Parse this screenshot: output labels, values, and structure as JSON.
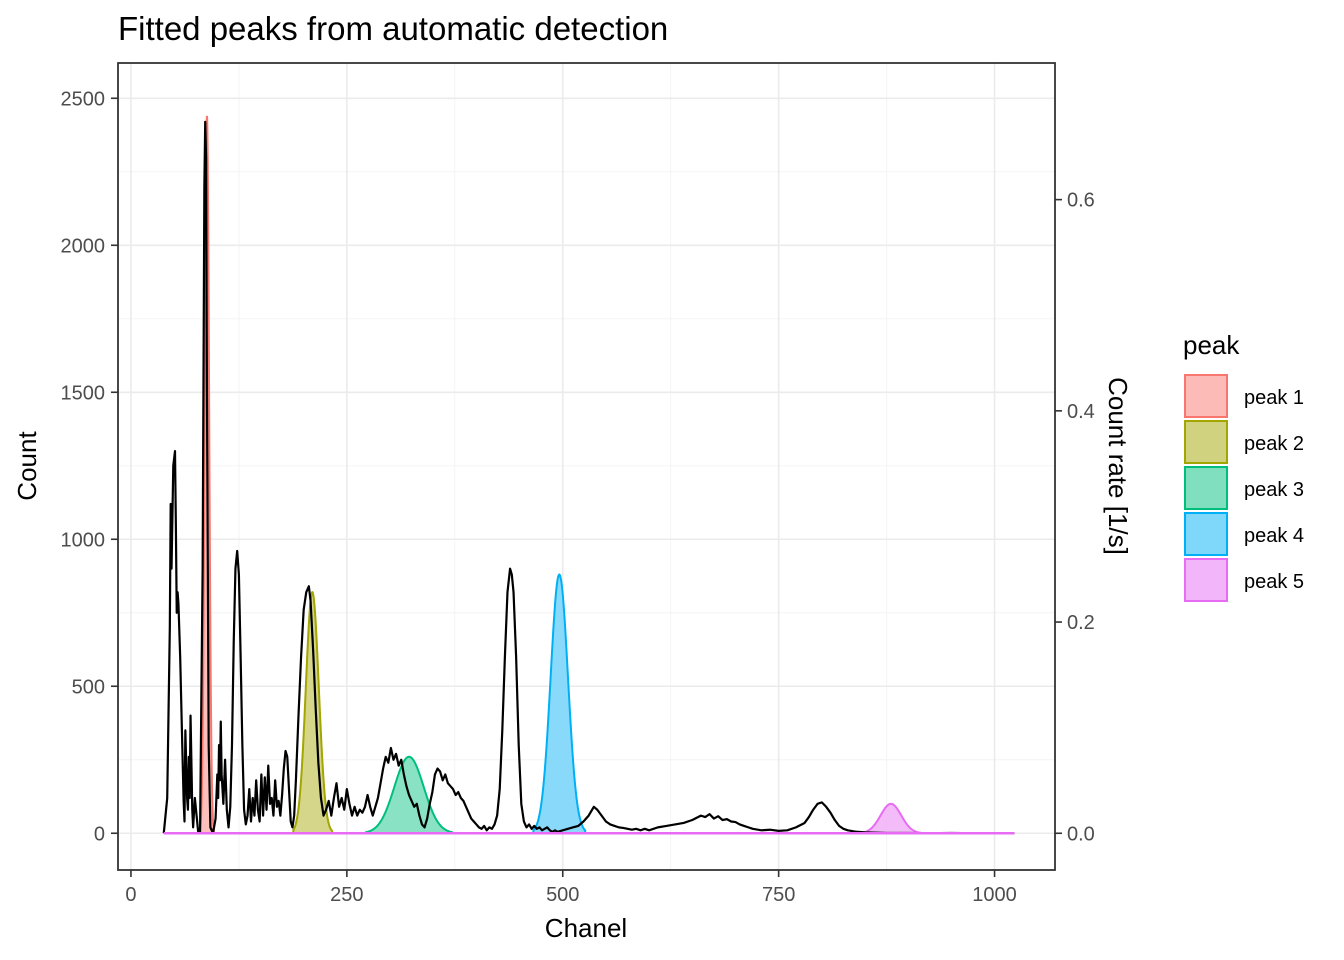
{
  "chart_data": {
    "type": "area",
    "title": "Fitted peaks from automatic detection",
    "xlabel": "Chanel",
    "ylabel": "Count",
    "y2label": "Count rate [1/s]",
    "xlim": [
      -15,
      1070
    ],
    "ylim": [
      -125,
      2620
    ],
    "y2lim": [
      -0.03478,
      0.72937
    ],
    "x_ticks": [
      0,
      250,
      500,
      750,
      1000
    ],
    "x_tick_labels": [
      "0",
      "250",
      "500",
      "750",
      "1000"
    ],
    "y_ticks": [
      0,
      500,
      1000,
      1500,
      2000,
      2500
    ],
    "y_tick_labels": [
      "0",
      "500",
      "1000",
      "1500",
      "2000",
      "2500"
    ],
    "y2_ticks": [
      0.0,
      0.2,
      0.4,
      0.6
    ],
    "y2_tick_labels": [
      "0.0",
      "0.2",
      "0.4",
      "0.6"
    ],
    "grid": true,
    "legend": {
      "title": "peak",
      "position": "right"
    },
    "spectrum": {
      "color": "#000000",
      "points": [
        [
          38,
          0
        ],
        [
          42,
          120
        ],
        [
          45,
          700
        ],
        [
          46,
          1120
        ],
        [
          47,
          900
        ],
        [
          49,
          1250
        ],
        [
          51,
          1300
        ],
        [
          52,
          1050
        ],
        [
          53,
          750
        ],
        [
          54,
          820
        ],
        [
          55,
          780
        ],
        [
          57,
          600
        ],
        [
          59,
          350
        ],
        [
          61,
          110
        ],
        [
          62,
          40
        ],
        [
          63,
          350
        ],
        [
          65,
          120
        ],
        [
          66,
          80
        ],
        [
          67,
          260
        ],
        [
          68,
          120
        ],
        [
          69,
          400
        ],
        [
          70,
          240
        ],
        [
          71,
          80
        ],
        [
          72,
          20
        ],
        [
          74,
          120
        ],
        [
          76,
          60
        ],
        [
          78,
          0
        ],
        [
          80,
          0
        ],
        [
          83,
          900
        ],
        [
          85,
          2200
        ],
        [
          86,
          2420
        ],
        [
          87,
          2300
        ],
        [
          88,
          1500
        ],
        [
          90,
          300
        ],
        [
          92,
          20
        ],
        [
          95,
          0
        ],
        [
          98,
          50
        ],
        [
          100,
          200
        ],
        [
          101,
          120
        ],
        [
          102,
          300
        ],
        [
          103,
          180
        ],
        [
          104,
          380
        ],
        [
          105,
          200
        ],
        [
          107,
          100
        ],
        [
          109,
          250
        ],
        [
          111,
          80
        ],
        [
          113,
          20
        ],
        [
          115,
          90
        ],
        [
          117,
          300
        ],
        [
          119,
          650
        ],
        [
          121,
          900
        ],
        [
          123,
          960
        ],
        [
          125,
          880
        ],
        [
          127,
          600
        ],
        [
          129,
          300
        ],
        [
          131,
          80
        ],
        [
          133,
          30
        ],
        [
          135,
          60
        ],
        [
          137,
          150
        ],
        [
          139,
          40
        ],
        [
          141,
          120
        ],
        [
          143,
          60
        ],
        [
          145,
          180
        ],
        [
          147,
          80
        ],
        [
          149,
          40
        ],
        [
          151,
          200
        ],
        [
          153,
          60
        ],
        [
          155,
          190
        ],
        [
          157,
          80
        ],
        [
          159,
          230
        ],
        [
          161,
          100
        ],
        [
          163,
          120
        ],
        [
          165,
          60
        ],
        [
          167,
          180
        ],
        [
          169,
          90
        ],
        [
          171,
          110
        ],
        [
          173,
          60
        ],
        [
          175,
          130
        ],
        [
          177,
          220
        ],
        [
          179,
          280
        ],
        [
          181,
          260
        ],
        [
          183,
          150
        ],
        [
          185,
          40
        ],
        [
          187,
          20
        ],
        [
          189,
          60
        ],
        [
          191,
          180
        ],
        [
          194,
          400
        ],
        [
          197,
          600
        ],
        [
          200,
          760
        ],
        [
          203,
          820
        ],
        [
          206,
          840
        ],
        [
          208,
          790
        ],
        [
          211,
          620
        ],
        [
          214,
          420
        ],
        [
          217,
          240
        ],
        [
          220,
          120
        ],
        [
          223,
          60
        ],
        [
          226,
          80
        ],
        [
          229,
          110
        ],
        [
          232,
          60
        ],
        [
          235,
          120
        ],
        [
          238,
          170
        ],
        [
          241,
          90
        ],
        [
          244,
          120
        ],
        [
          247,
          80
        ],
        [
          250,
          150
        ],
        [
          253,
          100
        ],
        [
          256,
          60
        ],
        [
          259,
          90
        ],
        [
          262,
          60
        ],
        [
          265,
          80
        ],
        [
          268,
          70
        ],
        [
          271,
          90
        ],
        [
          274,
          130
        ],
        [
          277,
          90
        ],
        [
          280,
          60
        ],
        [
          283,
          90
        ],
        [
          286,
          120
        ],
        [
          289,
          170
        ],
        [
          292,
          220
        ],
        [
          295,
          260
        ],
        [
          298,
          240
        ],
        [
          301,
          290
        ],
        [
          304,
          250
        ],
        [
          307,
          270
        ],
        [
          310,
          230
        ],
        [
          313,
          250
        ],
        [
          316,
          200
        ],
        [
          319,
          160
        ],
        [
          322,
          130
        ],
        [
          325,
          110
        ],
        [
          328,
          90
        ],
        [
          331,
          100
        ],
        [
          334,
          60
        ],
        [
          337,
          30
        ],
        [
          340,
          20
        ],
        [
          343,
          50
        ],
        [
          346,
          100
        ],
        [
          349,
          140
        ],
        [
          352,
          200
        ],
        [
          355,
          220
        ],
        [
          358,
          210
        ],
        [
          361,
          180
        ],
        [
          364,
          200
        ],
        [
          367,
          170
        ],
        [
          370,
          160
        ],
        [
          373,
          150
        ],
        [
          376,
          130
        ],
        [
          379,
          140
        ],
        [
          382,
          120
        ],
        [
          385,
          110
        ],
        [
          388,
          90
        ],
        [
          391,
          70
        ],
        [
          394,
          50
        ],
        [
          397,
          40
        ],
        [
          400,
          30
        ],
        [
          403,
          20
        ],
        [
          406,
          15
        ],
        [
          409,
          25
        ],
        [
          412,
          10
        ],
        [
          415,
          20
        ],
        [
          418,
          15
        ],
        [
          421,
          30
        ],
        [
          424,
          60
        ],
        [
          427,
          150
        ],
        [
          430,
          350
        ],
        [
          433,
          600
        ],
        [
          436,
          820
        ],
        [
          439,
          900
        ],
        [
          441,
          880
        ],
        [
          443,
          820
        ],
        [
          446,
          600
        ],
        [
          449,
          300
        ],
        [
          452,
          100
        ],
        [
          455,
          40
        ],
        [
          458,
          20
        ],
        [
          461,
          30
        ],
        [
          464,
          15
        ],
        [
          467,
          25
        ],
        [
          470,
          15
        ],
        [
          473,
          20
        ],
        [
          476,
          10
        ],
        [
          479,
          15
        ],
        [
          482,
          20
        ],
        [
          485,
          10
        ],
        [
          488,
          5
        ],
        [
          491,
          10
        ],
        [
          494,
          5
        ],
        [
          500,
          10
        ],
        [
          506,
          15
        ],
        [
          512,
          20
        ],
        [
          518,
          25
        ],
        [
          524,
          40
        ],
        [
          530,
          60
        ],
        [
          536,
          90
        ],
        [
          540,
          80
        ],
        [
          545,
          60
        ],
        [
          550,
          40
        ],
        [
          555,
          30
        ],
        [
          560,
          25
        ],
        [
          565,
          20
        ],
        [
          570,
          18
        ],
        [
          575,
          15
        ],
        [
          580,
          12
        ],
        [
          585,
          15
        ],
        [
          590,
          10
        ],
        [
          595,
          15
        ],
        [
          600,
          10
        ],
        [
          610,
          20
        ],
        [
          620,
          25
        ],
        [
          630,
          30
        ],
        [
          640,
          35
        ],
        [
          650,
          45
        ],
        [
          660,
          60
        ],
        [
          665,
          55
        ],
        [
          670,
          65
        ],
        [
          675,
          50
        ],
        [
          680,
          58
        ],
        [
          685,
          45
        ],
        [
          690,
          48
        ],
        [
          695,
          40
        ],
        [
          700,
          38
        ],
        [
          705,
          30
        ],
        [
          710,
          25
        ],
        [
          715,
          20
        ],
        [
          720,
          15
        ],
        [
          730,
          10
        ],
        [
          740,
          12
        ],
        [
          750,
          8
        ],
        [
          760,
          10
        ],
        [
          770,
          20
        ],
        [
          780,
          35
        ],
        [
          785,
          55
        ],
        [
          790,
          80
        ],
        [
          795,
          100
        ],
        [
          800,
          105
        ],
        [
          805,
          90
        ],
        [
          810,
          70
        ],
        [
          815,
          45
        ],
        [
          820,
          25
        ],
        [
          825,
          15
        ],
        [
          830,
          10
        ],
        [
          840,
          5
        ],
        [
          850,
          3
        ],
        [
          860,
          2
        ],
        [
          875,
          1
        ],
        [
          900,
          1
        ],
        [
          925,
          0
        ],
        [
          950,
          1
        ],
        [
          975,
          0
        ],
        [
          1000,
          0
        ],
        [
          1023,
          0
        ]
      ]
    },
    "series": [
      {
        "name": "peak 1",
        "line": "#f8766d",
        "fill": "#fcbbb6",
        "mean": 88,
        "sigma": 2.5,
        "amp": 2440,
        "xmin": 80,
        "xmax": 96
      },
      {
        "name": "peak 2",
        "line": "#a3a500",
        "fill": "#d1d27f",
        "mean": 210,
        "sigma": 7.5,
        "amp": 820,
        "xmin": 188,
        "xmax": 233
      },
      {
        "name": "peak 3",
        "line": "#00bf7d",
        "fill": "#7fdfbe",
        "mean": 322,
        "sigma": 17,
        "amp": 260,
        "xmin": 272,
        "xmax": 372
      },
      {
        "name": "peak 4",
        "line": "#00b0f6",
        "fill": "#7fd7fa",
        "mean": 496,
        "sigma": 10,
        "amp": 880,
        "xmin": 466,
        "xmax": 526
      },
      {
        "name": "peak 5",
        "line": "#e76bf3",
        "fill": "#f3b5f9",
        "mean": 880,
        "sigma": 12,
        "amp": 100,
        "xmin": 845,
        "xmax": 915
      }
    ],
    "baseline": {
      "xmin": 38,
      "xmax": 1023
    }
  }
}
